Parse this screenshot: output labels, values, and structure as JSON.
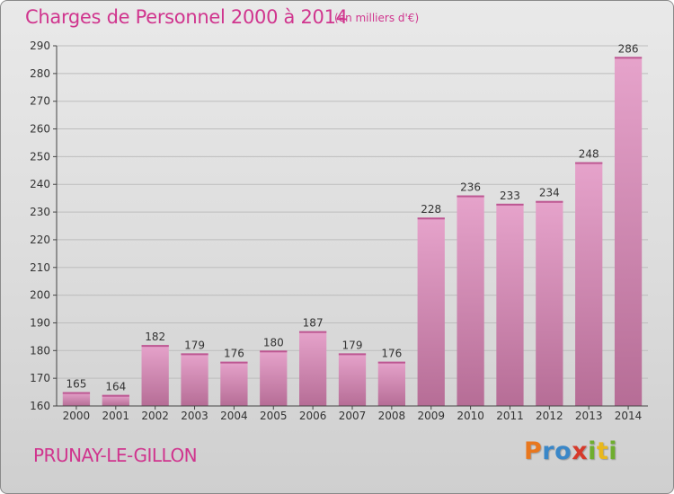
{
  "header": {
    "title": "Charges de Personnel 2000 à 2014",
    "subtitle": "(en milliers d'€)"
  },
  "footer": {
    "commune": "PRUNAY-LE-GILLON",
    "logo": {
      "letters": [
        "P",
        "r",
        "o",
        "x",
        "i",
        "t",
        "i"
      ],
      "colors": [
        "#e8771e",
        "#3a87c8",
        "#3a87c8",
        "#d63a2b",
        "#6fae2f",
        "#e8b81e",
        "#6fae2f"
      ]
    }
  },
  "colors": {
    "accent": "#d0358e",
    "bar_top": "#e6a3cb",
    "bar_bottom": "#b66d96",
    "grid": "#bdbdbd",
    "axis": "#444444"
  },
  "chart_data": {
    "type": "bar",
    "categories": [
      "2000",
      "2001",
      "2002",
      "2003",
      "2004",
      "2005",
      "2006",
      "2007",
      "2008",
      "2009",
      "2010",
      "2011",
      "2012",
      "2013",
      "2014"
    ],
    "values": [
      165,
      164,
      182,
      179,
      176,
      180,
      187,
      179,
      176,
      228,
      236,
      233,
      234,
      248,
      286
    ],
    "ylim": [
      160,
      290
    ],
    "yticks": [
      160,
      170,
      180,
      190,
      200,
      210,
      220,
      230,
      240,
      250,
      260,
      270,
      280,
      290
    ],
    "grid": true,
    "data_labels": true
  }
}
